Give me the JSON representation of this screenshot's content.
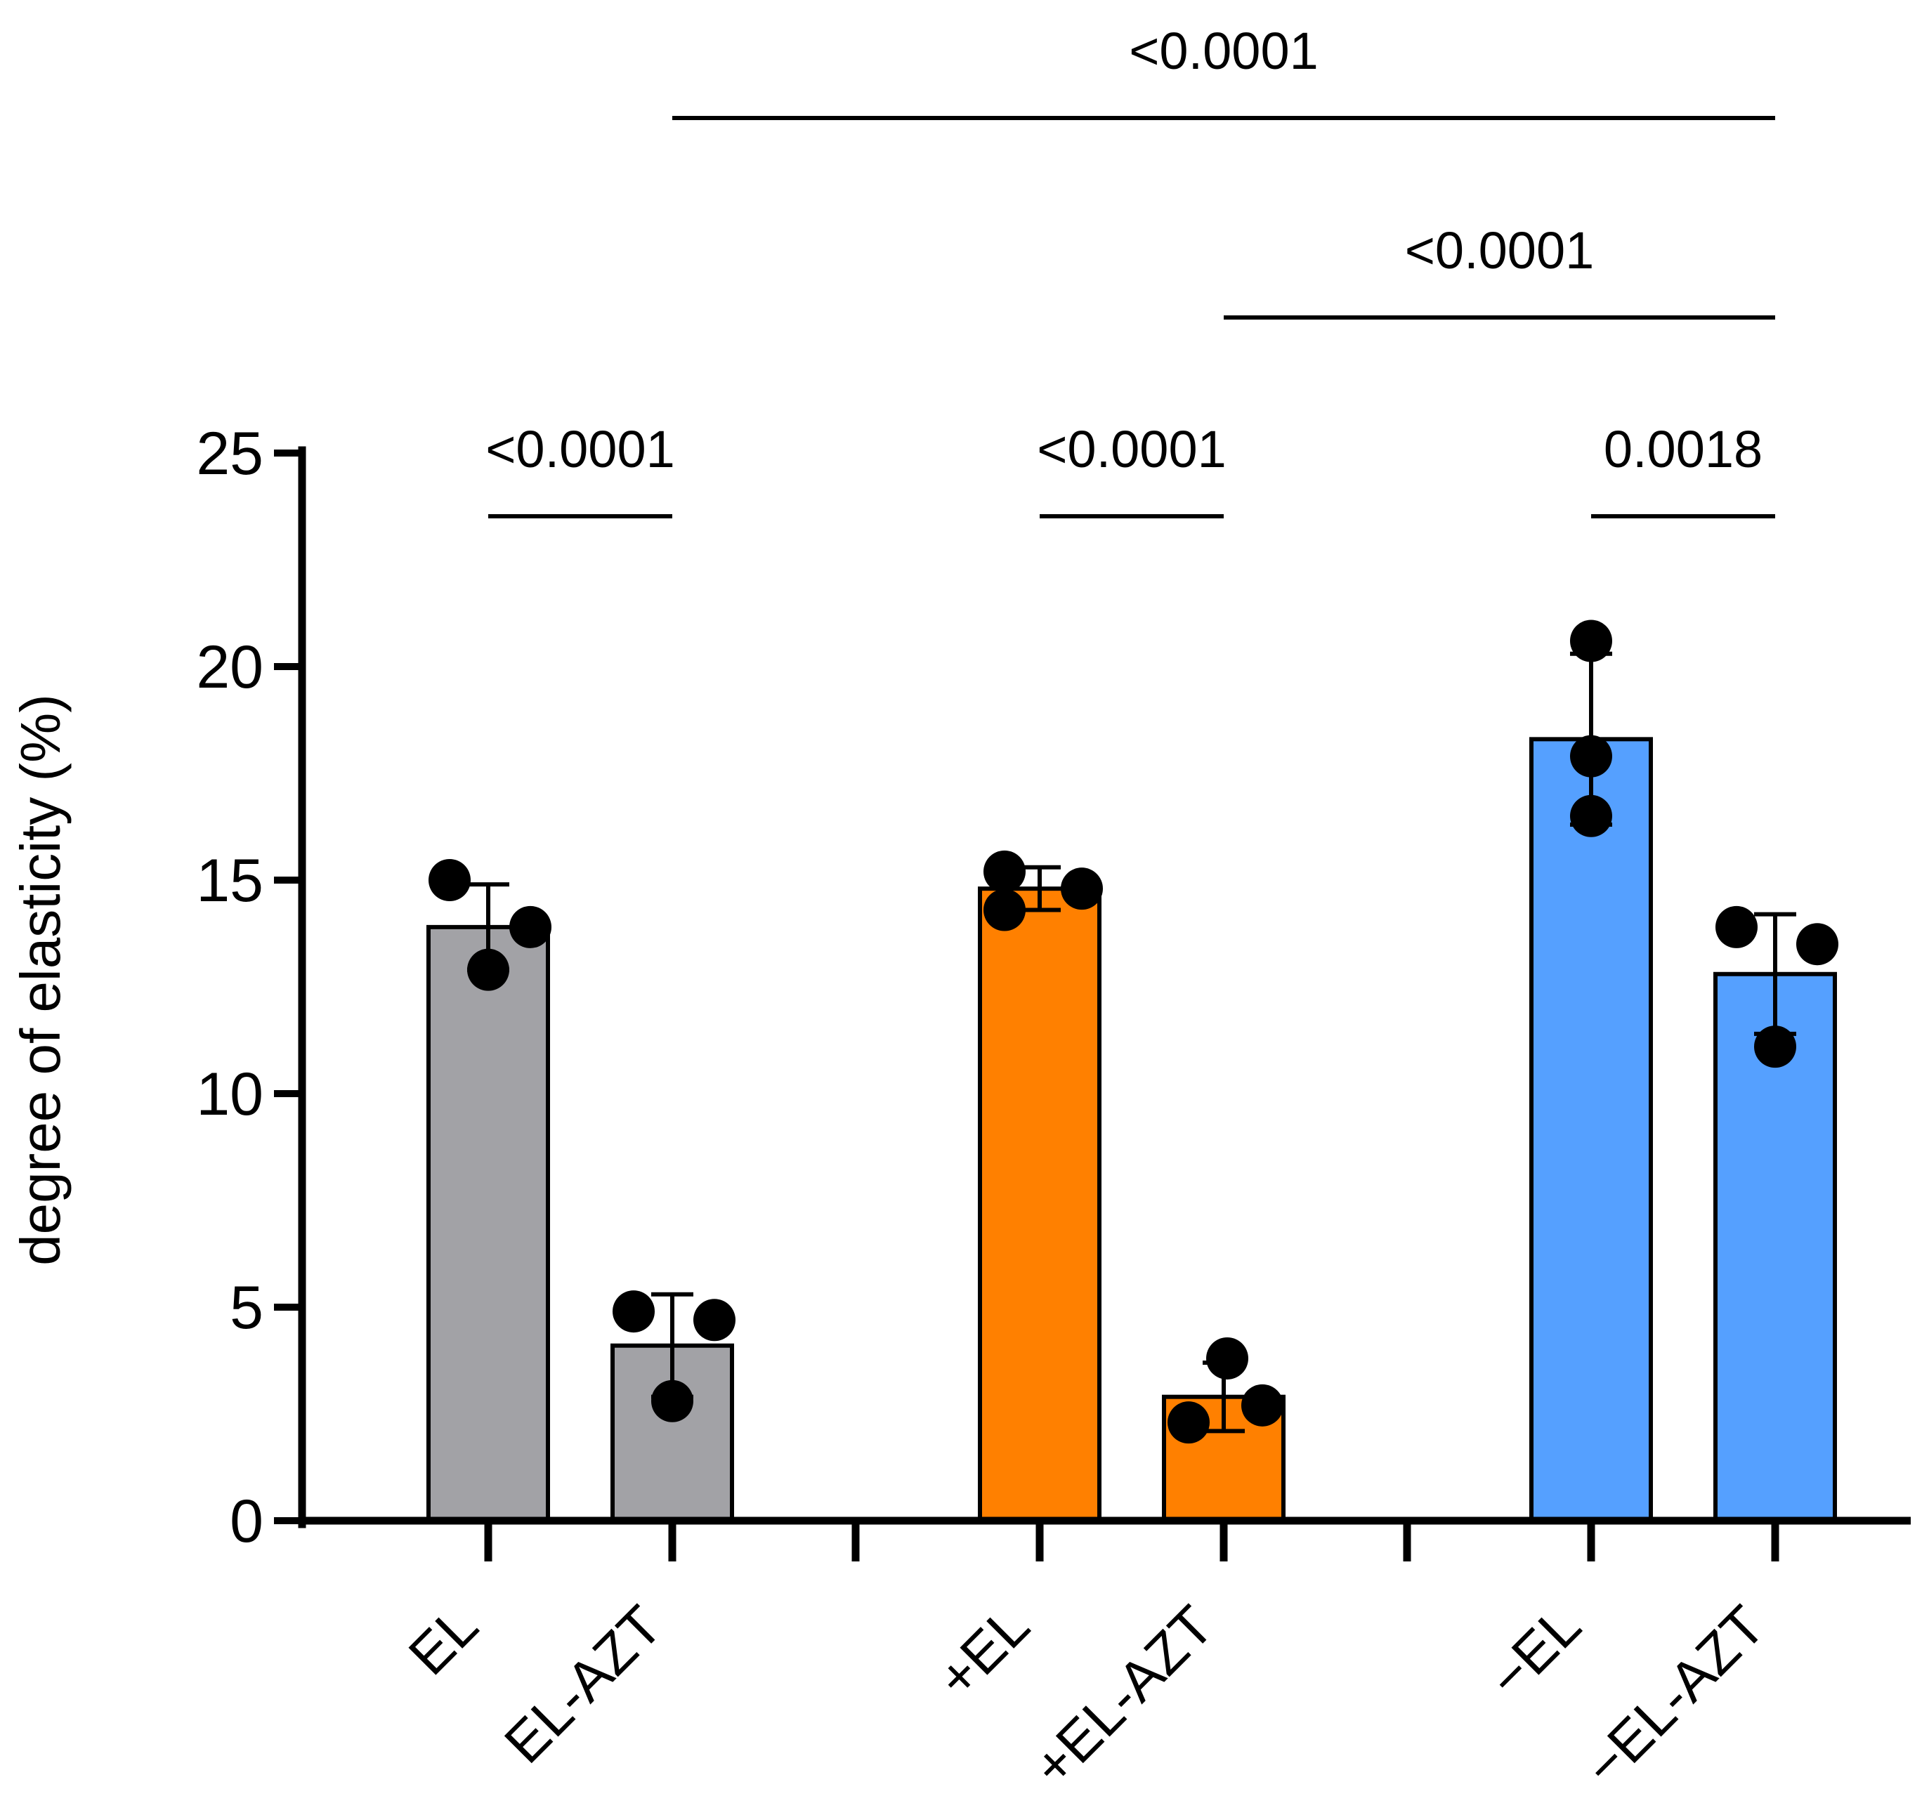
{
  "chart_data": {
    "type": "bar",
    "title": "",
    "xlabel": "",
    "ylabel": "degree of elasticity (%)",
    "ylim": [
      0,
      25
    ],
    "yticks": [
      "0",
      "5",
      "10",
      "15",
      "20",
      "25"
    ],
    "grid": false,
    "categories": [
      "EL",
      "EL-AZT",
      "+EL",
      "+EL-AZT",
      "−EL",
      "−EL-AZT"
    ],
    "bars": [
      {
        "label": "EL",
        "mean": 13.9,
        "sd": 1.0,
        "color": "#a2a2a6",
        "points": [
          15.0,
          13.9,
          12.9
        ]
      },
      {
        "label": "EL-AZT",
        "mean": 4.1,
        "sd": 1.2,
        "color": "#a2a2a6",
        "points": [
          4.9,
          4.7,
          2.8
        ]
      },
      {
        "label": "+EL",
        "mean": 14.8,
        "sd": 0.5,
        "color": "#ff8000",
        "points": [
          15.2,
          14.8,
          14.3
        ]
      },
      {
        "label": "+EL-AZT",
        "mean": 2.9,
        "sd": 0.8,
        "color": "#ff8000",
        "points": [
          3.8,
          2.7,
          2.3
        ]
      },
      {
        "label": "−EL",
        "mean": 18.3,
        "sd": 2.0,
        "color": "#55a0ff",
        "points": [
          20.6,
          17.9,
          16.5
        ]
      },
      {
        "label": "−EL-AZT",
        "mean": 12.8,
        "sd": 1.4,
        "color": "#55a0ff",
        "points": [
          13.9,
          13.5,
          11.1
        ]
      }
    ],
    "comparisons": [
      {
        "from": "EL",
        "to": "EL-AZT",
        "label": "<0.0001",
        "level": 0
      },
      {
        "from": "+EL",
        "to": "+EL-AZT",
        "label": "<0.0001",
        "level": 0
      },
      {
        "from": "−EL",
        "to": "−EL-AZT",
        "label": "0.0018",
        "level": 0
      },
      {
        "from": "+EL-AZT",
        "to": "−EL-AZT",
        "label": "<0.0001",
        "level": 1
      },
      {
        "from": "EL-AZT",
        "to": "−EL-AZT",
        "label": "<0.0001",
        "level": 2
      }
    ]
  }
}
